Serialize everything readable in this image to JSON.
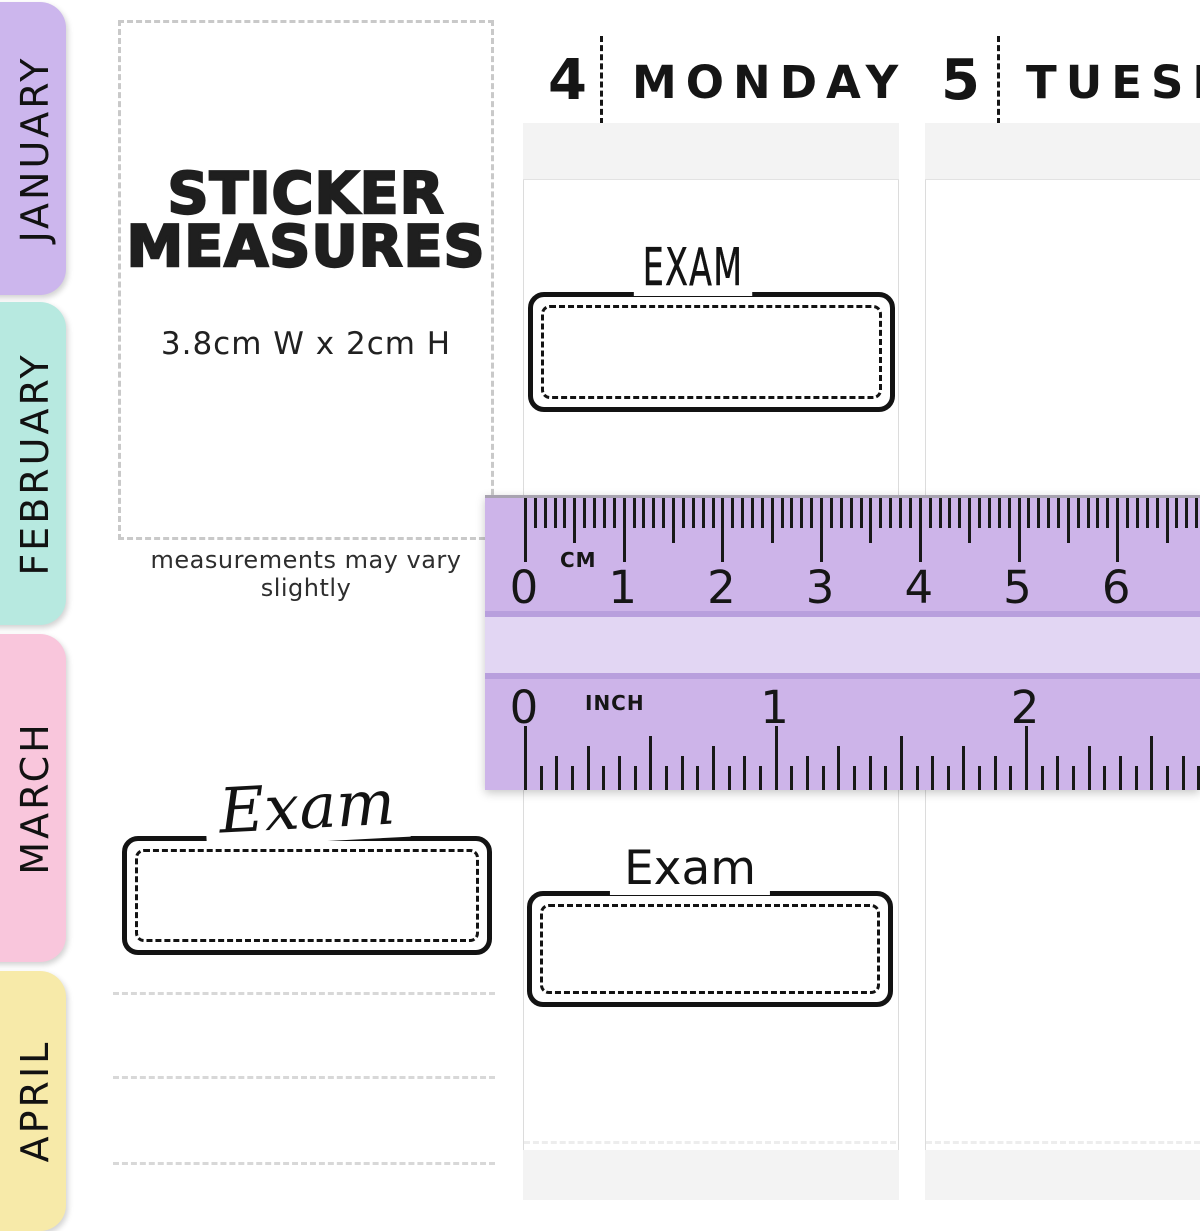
{
  "tabs": [
    {
      "label": "JANUARY",
      "color": "#ccb6ed"
    },
    {
      "label": "FEBRUARY",
      "color": "#b7e9e0"
    },
    {
      "label": "MARCH",
      "color": "#f9c6dc"
    },
    {
      "label": "APRIL",
      "color": "#f7eaa9"
    }
  ],
  "measure_panel": {
    "title_line1": "STICKER",
    "title_line2": "MEASURES",
    "size_text": "3.8cm W  x 2cm H",
    "note": "measurements may vary slightly"
  },
  "planner": {
    "days": [
      {
        "number": "4",
        "name": "MONDAY"
      },
      {
        "number": "5",
        "name": "TUESDAY"
      }
    ]
  },
  "stickers": [
    {
      "label": "EXAM",
      "style": "caps"
    },
    {
      "label": "Exam",
      "style": "script"
    },
    {
      "label": "Exam",
      "style": "print"
    }
  ],
  "ruler": {
    "cm_unit_label": "CM",
    "inch_unit_label": "INCH",
    "cm_numbers": [
      "0",
      "1",
      "2",
      "3",
      "4",
      "5",
      "6"
    ],
    "inch_numbers": [
      "0",
      "1",
      "2"
    ],
    "colors": {
      "band": "#cdb4e9",
      "light_band": "#e2d6f3",
      "stripe": "#b89fdd",
      "edge": "#a8a3b0"
    }
  }
}
